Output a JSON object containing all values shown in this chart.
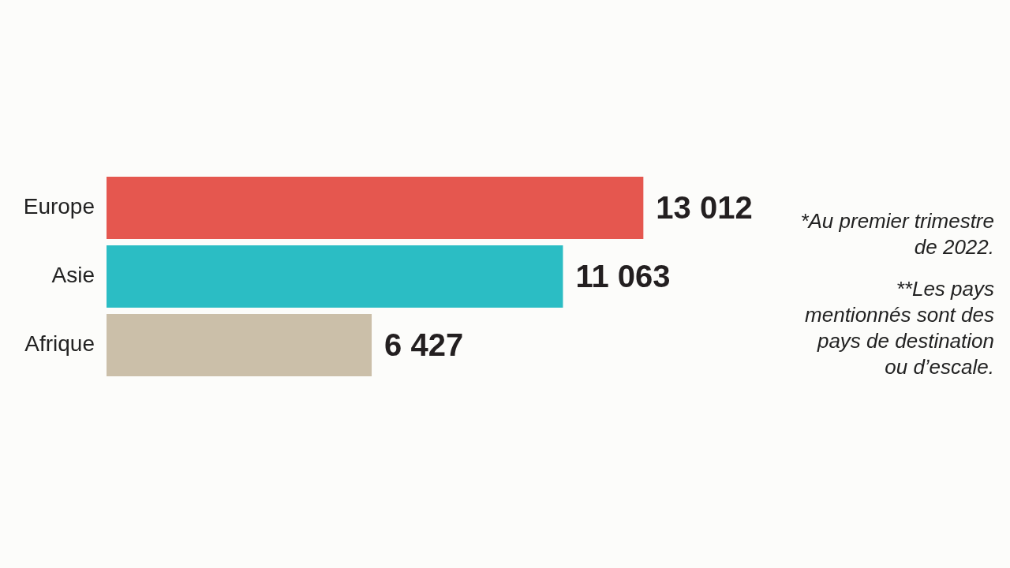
{
  "chart_data": {
    "type": "bar",
    "orientation": "horizontal",
    "categories": [
      "Europe",
      "Asie",
      "Afrique"
    ],
    "values": [
      13012,
      11063,
      6427
    ],
    "colors": [
      "#e5574f",
      "#2bbdc4",
      "#cbbfa9"
    ],
    "value_labels": [
      "13 012",
      "11 063",
      "6 427"
    ],
    "annotations": [
      "*Au premier trimestre de 2022.",
      "**Les pays mentionnés sont des pays de destination ou d’escale."
    ]
  }
}
